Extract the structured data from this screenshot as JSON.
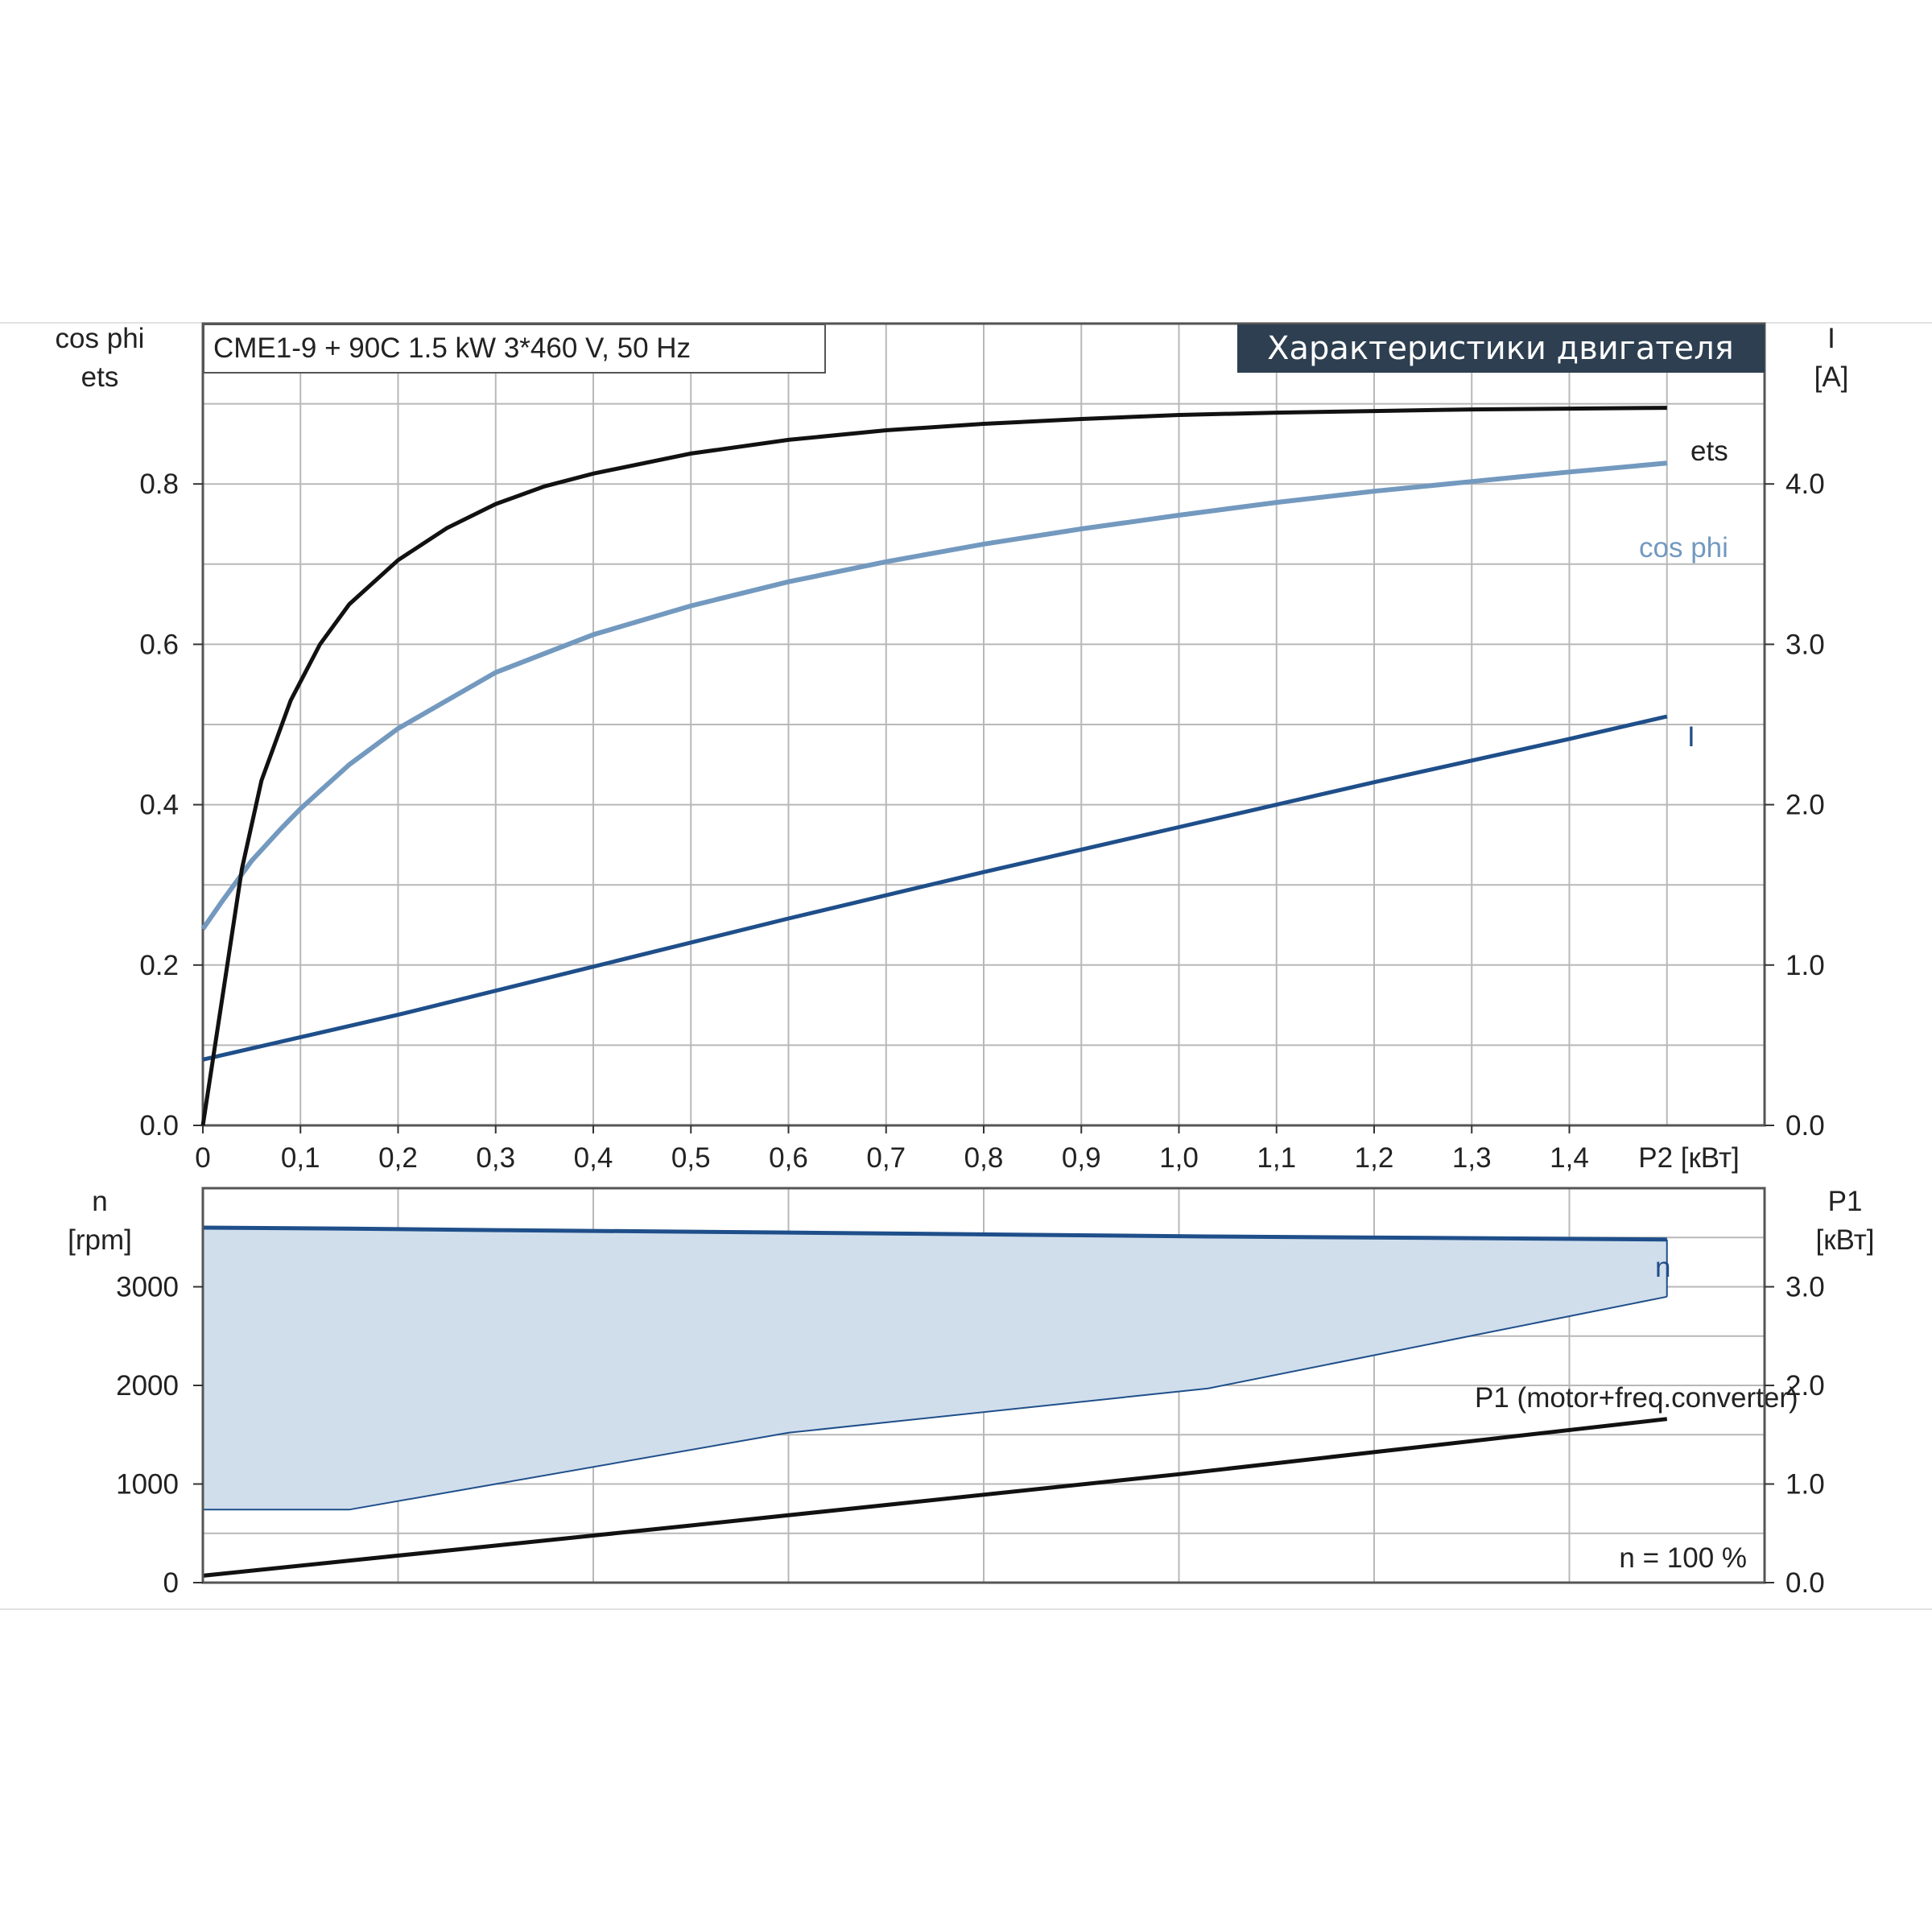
{
  "chart_data": [
    {
      "type": "line",
      "title": "Характеристики двигателя",
      "subtitle": "CME1-9 + 90C   1.5 kW   3*460 V, 50 Hz",
      "x_label": "P2 [кВт]",
      "x_ticks": [
        "0",
        "0,1",
        "0,2",
        "0,3",
        "0,4",
        "0,5",
        "0,6",
        "0,7",
        "0,8",
        "0,9",
        "1,0",
        "1,1",
        "1,2",
        "1,3",
        "1,4"
      ],
      "xlim": [
        0,
        1.6
      ],
      "y_left_label": [
        "cos phi",
        "ets"
      ],
      "y_left_ticks": [
        "0.0",
        "0.2",
        "0.4",
        "0.6",
        "0.8"
      ],
      "y_left_lim": [
        0,
        1.0
      ],
      "y_right_label": [
        "I",
        "[A]"
      ],
      "y_right_ticks": [
        "0.0",
        "1.0",
        "2.0",
        "3.0",
        "4.0"
      ],
      "y_right_lim": [
        0,
        5.0
      ],
      "grid": true,
      "series": [
        {
          "name": "ets",
          "color": "#111111",
          "axis": "left",
          "x": [
            0,
            0.02,
            0.04,
            0.06,
            0.09,
            0.12,
            0.15,
            0.2,
            0.25,
            0.3,
            0.35,
            0.4,
            0.5,
            0.6,
            0.7,
            0.8,
            0.9,
            1.0,
            1.1,
            1.2,
            1.3,
            1.4,
            1.5
          ],
          "y": [
            0.0,
            0.16,
            0.32,
            0.43,
            0.53,
            0.6,
            0.65,
            0.705,
            0.745,
            0.775,
            0.797,
            0.813,
            0.838,
            0.855,
            0.867,
            0.875,
            0.881,
            0.886,
            0.889,
            0.891,
            0.893,
            0.894,
            0.895
          ]
        },
        {
          "name": "cos phi",
          "color": "#7399bf",
          "axis": "left",
          "x": [
            0,
            0.02,
            0.05,
            0.08,
            0.1,
            0.15,
            0.2,
            0.3,
            0.4,
            0.5,
            0.6,
            0.7,
            0.8,
            0.9,
            1.0,
            1.1,
            1.2,
            1.3,
            1.4,
            1.5
          ],
          "y": [
            0.245,
            0.28,
            0.33,
            0.37,
            0.395,
            0.45,
            0.495,
            0.565,
            0.612,
            0.648,
            0.678,
            0.703,
            0.725,
            0.744,
            0.761,
            0.777,
            0.791,
            0.803,
            0.815,
            0.826
          ]
        },
        {
          "name": "I",
          "color": "#1f4f8a",
          "axis": "right",
          "x": [
            0,
            0.2,
            0.4,
            0.6,
            0.8,
            1.0,
            1.2,
            1.4,
            1.5
          ],
          "y": [
            0.41,
            0.69,
            0.99,
            1.29,
            1.58,
            1.86,
            2.14,
            2.41,
            2.55
          ]
        }
      ]
    },
    {
      "type": "area",
      "x_label": "",
      "xlim": [
        0,
        1.6
      ],
      "y_left_label": [
        "n",
        "[rpm]"
      ],
      "y_left_ticks": [
        "0",
        "1000",
        "2000",
        "3000"
      ],
      "y_left_lim": [
        0,
        4000
      ],
      "y_right_label": [
        "P1",
        "[кВт]"
      ],
      "y_right_ticks": [
        "0.0",
        "1.0",
        "2.0",
        "3.0"
      ],
      "y_right_lim": [
        0,
        4.0
      ],
      "annotation": "n = 100 %",
      "grid": true,
      "band": {
        "name": "n",
        "color": "#d0deec",
        "edge": "#1f4f8a",
        "x": [
          0,
          0.15,
          0.3,
          0.6,
          1.03,
          1.5
        ],
        "upper": [
          3600,
          3590,
          3575,
          3550,
          3510,
          3480
        ],
        "lower": [
          740,
          740,
          1000,
          1520,
          1970,
          2900
        ]
      },
      "series": [
        {
          "name": "P1 (motor+freq.converter)",
          "color": "#111111",
          "axis": "right",
          "x": [
            0,
            0.5,
            1.0,
            1.5
          ],
          "y": [
            0.07,
            0.58,
            1.1,
            1.66
          ]
        }
      ]
    }
  ]
}
